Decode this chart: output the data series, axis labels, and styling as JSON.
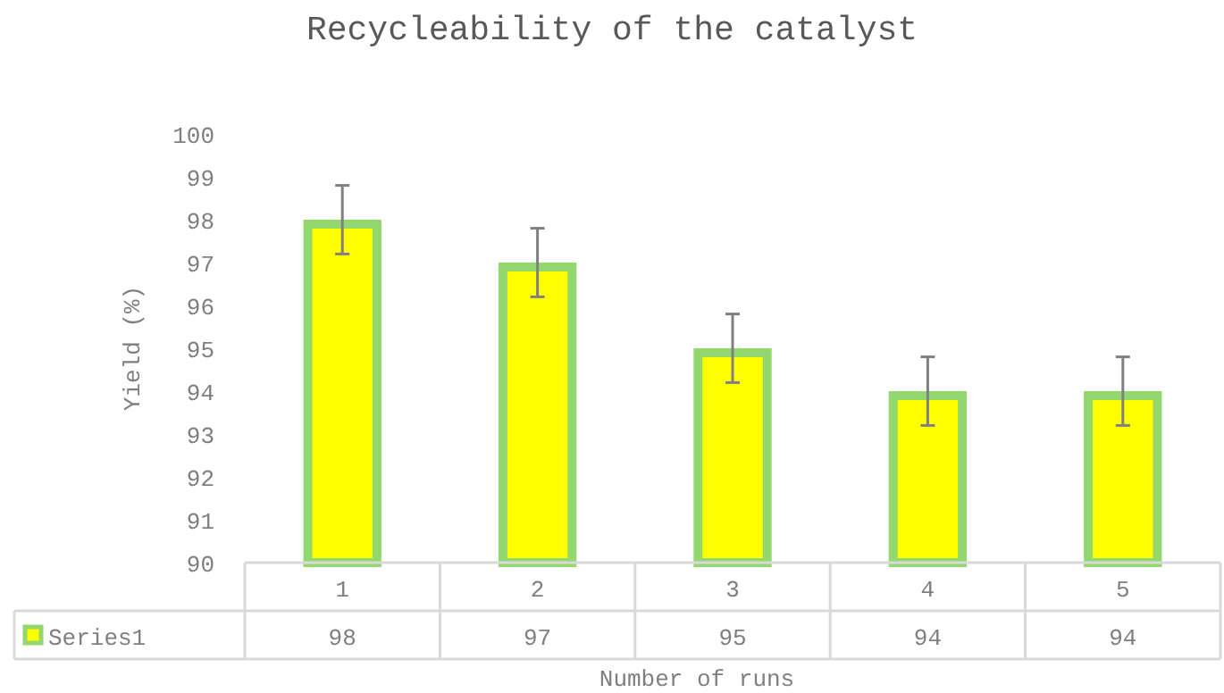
{
  "chart_data": {
    "type": "bar",
    "title": "Recycleability of the catalyst",
    "xlabel": "Number of runs",
    "ylabel": "Yield (%)",
    "categories": [
      "1",
      "2",
      "3",
      "4",
      "5"
    ],
    "series": [
      {
        "name": "Series1",
        "color": "#ffff00",
        "values": [
          98,
          97,
          95,
          94,
          94
        ],
        "errors": [
          0.8,
          0.8,
          0.8,
          0.8,
          0.8
        ]
      }
    ],
    "ylim": [
      90,
      100
    ],
    "yticks": [
      90,
      91,
      92,
      93,
      94,
      95,
      96,
      97,
      98,
      99,
      100
    ],
    "data_labels": true,
    "legend": "bottom",
    "grid": false
  }
}
